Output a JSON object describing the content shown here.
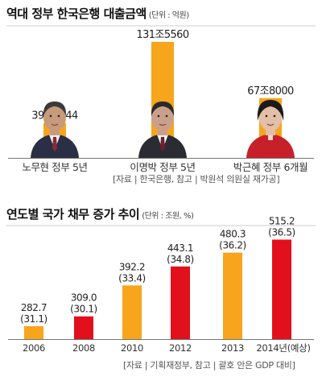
{
  "chart_data": [
    {
      "type": "bar",
      "title": "역대 정부 한국은행 대출금액",
      "unit_label": "(단위 : 억원)",
      "categories": [
        "노무현 정부 5년",
        "이명박 정부 5년",
        "박근혜 정부 6개월"
      ],
      "values": [
        39.5244,
        131.556,
        67.8
      ],
      "value_labels": [
        "39조5244",
        "131조5560",
        "67조8000"
      ],
      "source": "[자료 | 한국은행, 참고 | 박원석 의원실 재가공]",
      "colors": {
        "bar": "#f7a51c"
      }
    },
    {
      "type": "bar",
      "title": "연도별 국가 채무 증가 추이",
      "unit_label": "(단위 : 조원, %)",
      "categories": [
        "2006",
        "2008",
        "2010",
        "2012",
        "2013",
        "2014년(예상)"
      ],
      "values": [
        282.7,
        309.0,
        392.2,
        443.1,
        480.3,
        515.2
      ],
      "value_labels": [
        "282.7",
        "309.0",
        "392.2",
        "443.1",
        "480.3",
        "515.2"
      ],
      "gdp_ratio_labels": [
        "(31.1)",
        "(30.1)",
        "(33.4)",
        "(34.8)",
        "(36.2)",
        "(36.5)"
      ],
      "source": "[자료 | 기획재정부, 참고 | 괄호 안은 GDP 대비]",
      "colors": {
        "orange": "#f7a51c",
        "red": "#e2101c"
      },
      "bar_colors": [
        "orange",
        "red",
        "orange",
        "red",
        "orange",
        "red"
      ]
    }
  ],
  "portraits": [
    {
      "name": "portrait-roh-icon",
      "colors": {
        "suit": "#2a2f45",
        "skin": "#c79a7c",
        "hair": "#3a3a3a"
      }
    },
    {
      "name": "portrait-lee-icon",
      "colors": {
        "suit": "#2b2b34",
        "skin": "#caa08a",
        "hair": "#2a2a2a"
      }
    },
    {
      "name": "portrait-park-icon",
      "colors": {
        "suit": "#c8202b",
        "skin": "#e2bfa6",
        "hair": "#1e1a1a"
      }
    }
  ]
}
